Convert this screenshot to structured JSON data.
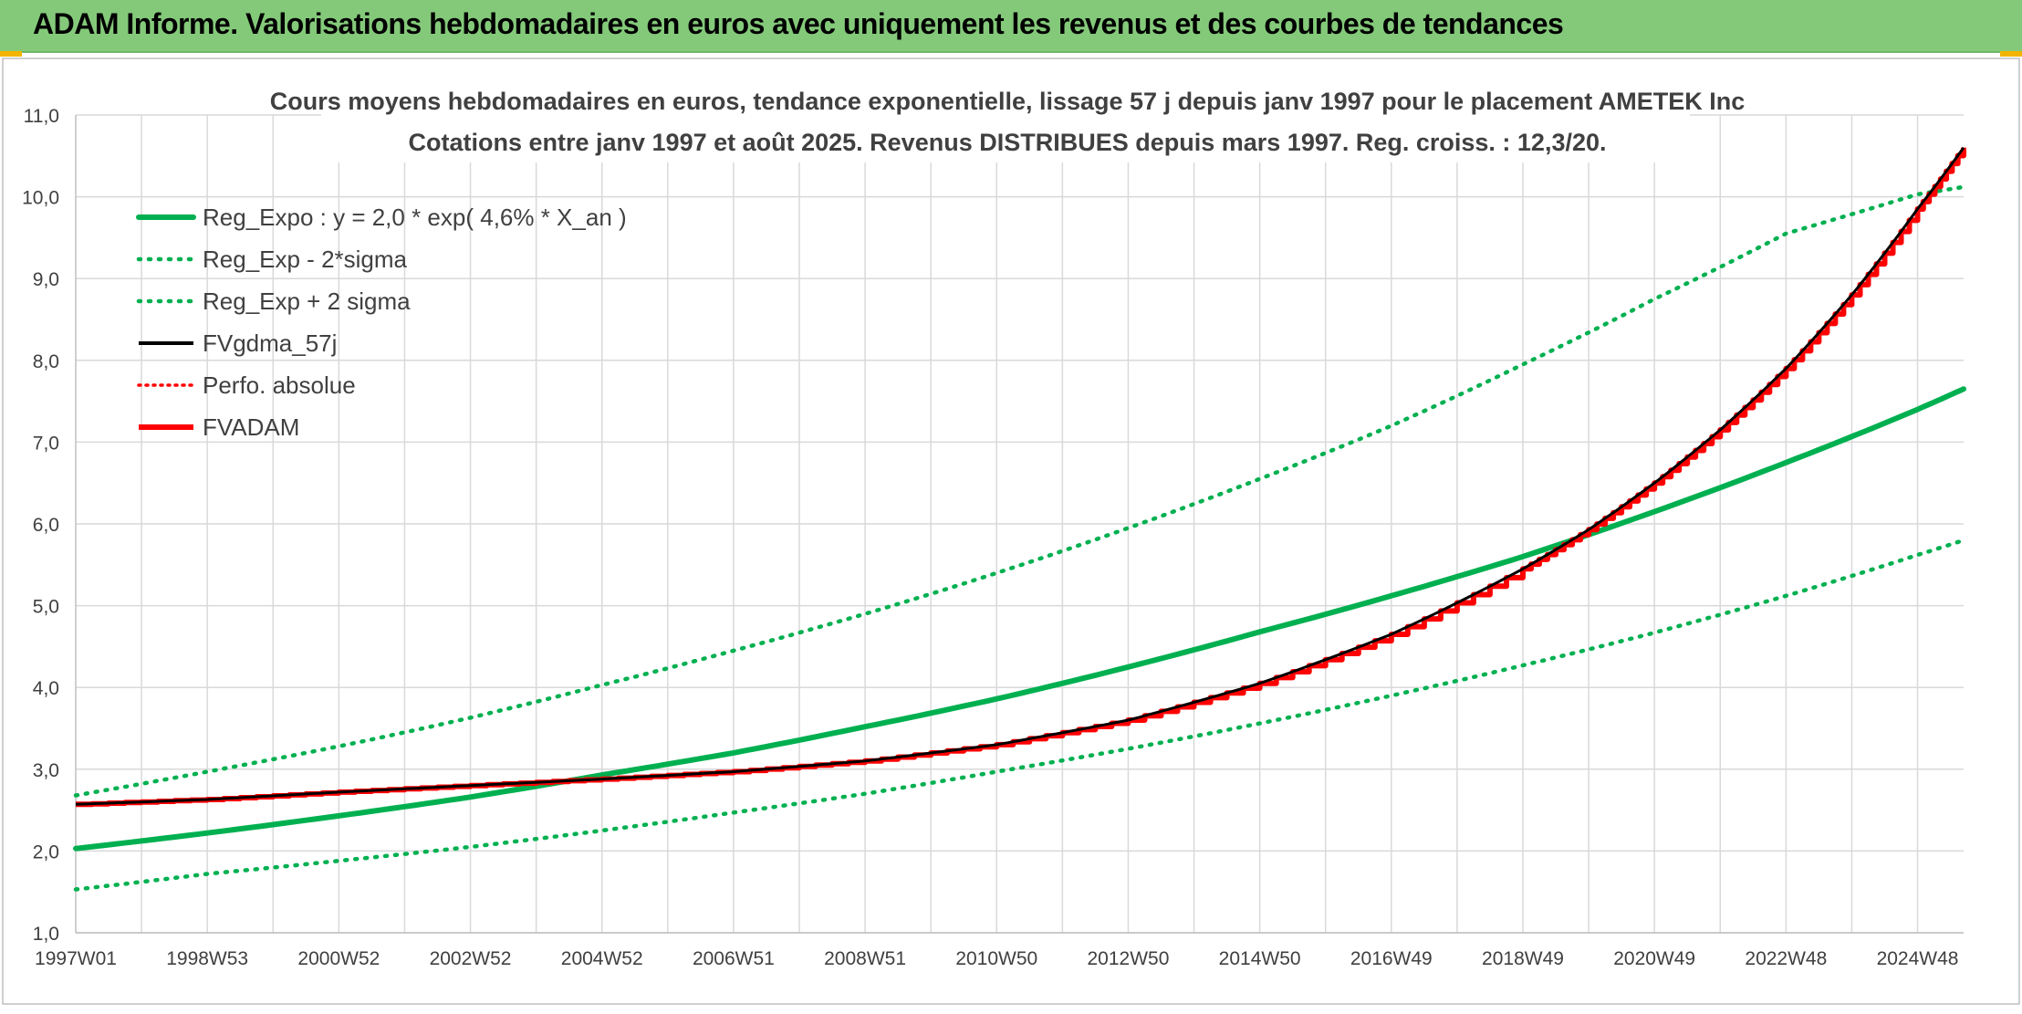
{
  "page": {
    "banner_title": "ADAM Informe. Valorisations hebdomadaires en euros avec uniquement les revenus et des courbes de tendances"
  },
  "colors": {
    "banner_bg": "#84c97a",
    "green": "#00b050",
    "red": "#ff0000",
    "black": "#000000",
    "grid": "#d9d9d9"
  },
  "chart_data": {
    "type": "line",
    "title": "Cours moyens hebdomadaires en euros, tendance exponentielle, lissage 57 j depuis janv 1997 pour le placement AMETEK Inc",
    "subtitle": "Cotations entre janv 1997 et août 2025. Revenus DISTRIBUES depuis mars 1997. Reg. croiss. : 12,3/20.",
    "xlabel": "",
    "ylabel": "",
    "x_range": [
      1997.0,
      2025.7
    ],
    "ylim": [
      1.0,
      11.0
    ],
    "yticks": [
      "1,0",
      "2,0",
      "3,0",
      "4,0",
      "5,0",
      "6,0",
      "7,0",
      "8,0",
      "9,0",
      "10,0",
      "11,0"
    ],
    "xtick_labels": [
      "1997W01",
      "1998W53",
      "2000W52",
      "2002W52",
      "2004W52",
      "2006W51",
      "2008W51",
      "2010W50",
      "2012W50",
      "2014W50",
      "2016W49",
      "2018W49",
      "2020W49",
      "2022W48",
      "2024W48"
    ],
    "xtick_positions": [
      1997.0,
      1999.0,
      2001.0,
      2003.0,
      2005.0,
      2007.0,
      2009.0,
      2011.0,
      2013.0,
      2015.0,
      2017.0,
      2019.0,
      2021.0,
      2023.0,
      2025.0
    ],
    "grid": true,
    "legend_position": "top-left",
    "series": [
      {
        "name": "Reg_Expo : y = 2,0 * exp( 4,6% *  X_an )",
        "style": "solid-thick",
        "color": "#00b050",
        "x": [
          1997.0,
          1999.0,
          2001.0,
          2003.0,
          2005.0,
          2007.0,
          2009.0,
          2011.0,
          2013.0,
          2015.0,
          2017.0,
          2019.0,
          2021.0,
          2023.0,
          2025.0,
          2025.7
        ],
        "y": [
          2.03,
          2.22,
          2.43,
          2.66,
          2.93,
          3.2,
          3.52,
          3.86,
          4.25,
          4.68,
          5.12,
          5.6,
          6.15,
          6.75,
          7.4,
          7.65
        ]
      },
      {
        "name": "Reg_Exp - 2*sigma",
        "style": "dotted",
        "color": "#00b050",
        "x": [
          1997.0,
          1999.0,
          2001.0,
          2003.0,
          2005.0,
          2007.0,
          2009.0,
          2011.0,
          2013.0,
          2015.0,
          2017.0,
          2019.0,
          2021.0,
          2023.0,
          2025.0,
          2025.7
        ],
        "y": [
          1.53,
          1.72,
          1.88,
          2.05,
          2.25,
          2.47,
          2.7,
          2.97,
          3.25,
          3.56,
          3.9,
          4.27,
          4.67,
          5.12,
          5.62,
          5.8
        ]
      },
      {
        "name": "Reg_Exp + 2 sigma",
        "style": "dotted",
        "color": "#00b050",
        "x": [
          1997.0,
          1999.0,
          2001.0,
          2003.0,
          2005.0,
          2007.0,
          2009.0,
          2011.0,
          2013.0,
          2015.0,
          2017.0,
          2019.0,
          2021.0,
          2023.0,
          2025.0,
          2025.7
        ],
        "y": [
          2.68,
          2.97,
          3.28,
          3.63,
          4.03,
          4.45,
          4.9,
          5.4,
          5.95,
          6.55,
          7.2,
          7.95,
          8.75,
          9.55,
          10.03,
          10.12
        ]
      },
      {
        "name": "FVgdma_57j",
        "style": "solid",
        "color": "#000000",
        "x": [
          1997.0,
          1999.0,
          2001.0,
          2003.0,
          2005.0,
          2007.0,
          2009.0,
          2011.0,
          2013.0,
          2015.0,
          2017.0,
          2019.0,
          2020.0,
          2021.0,
          2022.0,
          2023.0,
          2024.0,
          2025.0,
          2025.7
        ],
        "y": [
          2.57,
          2.63,
          2.72,
          2.8,
          2.88,
          2.97,
          3.1,
          3.3,
          3.6,
          4.05,
          4.65,
          5.45,
          5.93,
          6.5,
          7.15,
          7.9,
          8.8,
          9.85,
          10.6
        ]
      },
      {
        "name": "Perfo. absolue",
        "style": "dotted",
        "color": "#ff0000",
        "x": [],
        "y": []
      },
      {
        "name": "FVADAM",
        "style": "solid-thick-stepped",
        "color": "#ff0000",
        "x": [
          1997.0,
          1999.0,
          2001.0,
          2003.0,
          2005.0,
          2007.0,
          2009.0,
          2011.0,
          2013.0,
          2015.0,
          2017.0,
          2019.0,
          2020.0,
          2021.0,
          2022.0,
          2023.0,
          2024.0,
          2025.0,
          2025.7
        ],
        "y": [
          2.57,
          2.63,
          2.72,
          2.8,
          2.88,
          2.97,
          3.1,
          3.3,
          3.6,
          4.05,
          4.65,
          5.45,
          5.93,
          6.5,
          7.15,
          7.9,
          8.8,
          9.85,
          10.6
        ]
      }
    ]
  }
}
